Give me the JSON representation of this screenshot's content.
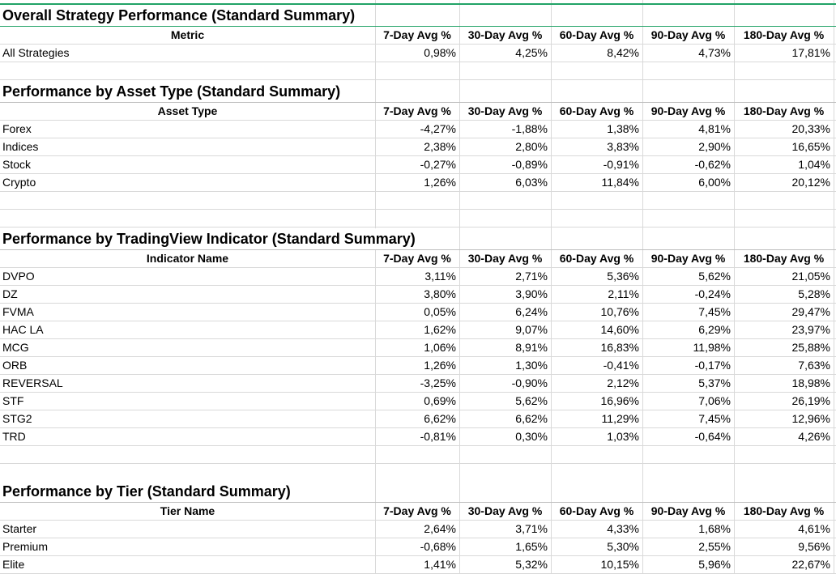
{
  "columns": [
    "7-Day Avg %",
    "30-Day Avg %",
    "60-Day Avg %",
    "90-Day Avg %",
    "180-Day Avg %"
  ],
  "sections": [
    {
      "title": "Overall Strategy Performance (Standard Summary)",
      "header": "Metric",
      "rows": [
        {
          "label": "All Strategies",
          "values": [
            "0,98%",
            "4,25%",
            "8,42%",
            "4,73%",
            "17,81%"
          ]
        }
      ]
    },
    {
      "title": "Performance by Asset Type (Standard Summary)",
      "header": "Asset Type",
      "rows": [
        {
          "label": "Forex",
          "values": [
            "-4,27%",
            "-1,88%",
            "1,38%",
            "4,81%",
            "20,33%"
          ]
        },
        {
          "label": "Indices",
          "values": [
            "2,38%",
            "2,80%",
            "3,83%",
            "2,90%",
            "16,65%"
          ]
        },
        {
          "label": "Stock",
          "values": [
            "-0,27%",
            "-0,89%",
            "-0,91%",
            "-0,62%",
            "1,04%"
          ]
        },
        {
          "label": "Crypto",
          "values": [
            "1,26%",
            "6,03%",
            "11,84%",
            "6,00%",
            "20,12%"
          ]
        }
      ]
    },
    {
      "title": "Performance by TradingView Indicator (Standard Summary)",
      "header": "Indicator Name",
      "rows": [
        {
          "label": "DVPO",
          "values": [
            "3,11%",
            "2,71%",
            "5,36%",
            "5,62%",
            "21,05%"
          ]
        },
        {
          "label": "DZ",
          "values": [
            "3,80%",
            "3,90%",
            "2,11%",
            "-0,24%",
            "5,28%"
          ]
        },
        {
          "label": "FVMA",
          "values": [
            "0,05%",
            "6,24%",
            "10,76%",
            "7,45%",
            "29,47%"
          ]
        },
        {
          "label": "HAC LA",
          "values": [
            "1,62%",
            "9,07%",
            "14,60%",
            "6,29%",
            "23,97%"
          ]
        },
        {
          "label": "MCG",
          "values": [
            "1,06%",
            "8,91%",
            "16,83%",
            "11,98%",
            "25,88%"
          ]
        },
        {
          "label": "ORB",
          "values": [
            "1,26%",
            "1,30%",
            "-0,41%",
            "-0,17%",
            "7,63%"
          ]
        },
        {
          "label": "REVERSAL",
          "values": [
            "-3,25%",
            "-0,90%",
            "2,12%",
            "5,37%",
            "18,98%"
          ]
        },
        {
          "label": "STF",
          "values": [
            "0,69%",
            "5,62%",
            "16,96%",
            "7,06%",
            "26,19%"
          ]
        },
        {
          "label": "STG2",
          "values": [
            "6,62%",
            "6,62%",
            "11,29%",
            "7,45%",
            "12,96%"
          ]
        },
        {
          "label": "TRD",
          "values": [
            "-0,81%",
            "0,30%",
            "1,03%",
            "-0,64%",
            "4,26%"
          ]
        }
      ]
    },
    {
      "title": "Performance by Tier (Standard Summary)",
      "header": "Tier Name",
      "rows": [
        {
          "label": "Starter",
          "values": [
            "2,64%",
            "3,71%",
            "4,33%",
            "1,68%",
            "4,61%"
          ]
        },
        {
          "label": "Premium",
          "values": [
            "-0,68%",
            "1,65%",
            "5,30%",
            "2,55%",
            "9,56%"
          ]
        },
        {
          "label": "Elite",
          "values": [
            "1,41%",
            "5,32%",
            "10,15%",
            "5,96%",
            "22,67%"
          ]
        }
      ]
    }
  ],
  "colors": {
    "accent": "#21a366",
    "gridline": "#d9d9d9"
  }
}
